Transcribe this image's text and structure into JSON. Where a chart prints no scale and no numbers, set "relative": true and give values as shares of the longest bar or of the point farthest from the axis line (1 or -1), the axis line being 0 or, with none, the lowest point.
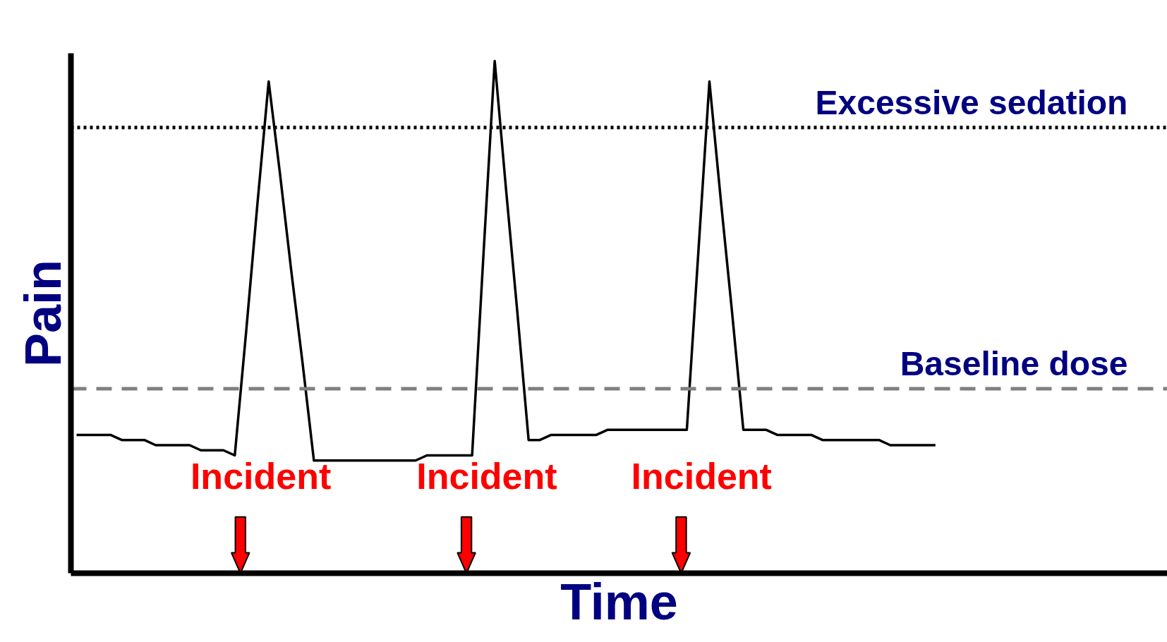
{
  "chart_data": {
    "type": "line",
    "relative": true,
    "xlabel": "Time",
    "ylabel": "Pain",
    "categories": [
      null,
      null,
      null,
      null,
      null,
      null,
      null,
      null,
      null,
      null,
      null,
      null,
      null,
      null,
      null,
      null,
      null,
      null,
      null,
      null,
      null,
      null,
      null,
      null,
      null,
      null,
      null,
      null,
      null,
      null,
      null,
      null,
      null,
      null,
      null,
      null,
      null,
      null,
      null,
      null,
      null,
      null,
      null,
      null,
      null,
      null,
      null,
      null,
      null,
      null,
      null,
      null,
      null,
      null,
      null,
      null,
      null,
      null,
      null,
      null,
      null,
      null,
      null,
      null,
      null,
      null,
      null,
      null,
      null,
      null,
      null,
      null,
      null,
      null,
      null,
      null,
      null
    ],
    "series": [
      {
        "color": "#000000",
        "values": [
          0.27,
          0.27,
          0.27,
          0.27,
          0.26,
          0.26,
          0.26,
          0.25,
          0.25,
          0.25,
          0.25,
          0.24,
          0.24,
          0.24,
          0.23,
          0.47,
          0.72,
          0.96,
          0.78,
          0.59,
          0.41,
          0.22,
          0.22,
          0.22,
          0.22,
          0.22,
          0.22,
          0.22,
          0.22,
          0.22,
          0.22,
          0.23,
          0.23,
          0.23,
          0.23,
          0.23,
          0.62,
          1.0,
          0.75,
          0.51,
          0.26,
          0.26,
          0.27,
          0.27,
          0.27,
          0.27,
          0.27,
          0.28,
          0.28,
          0.28,
          0.28,
          0.28,
          0.28,
          0.28,
          0.28,
          0.62,
          0.96,
          0.73,
          0.51,
          0.28,
          0.28,
          0.28,
          0.27,
          0.27,
          0.27,
          0.27,
          0.26,
          0.26,
          0.26,
          0.26,
          0.26,
          0.26,
          0.25,
          0.25,
          0.25,
          0.25,
          0.25
        ]
      }
    ],
    "ref_lines": [
      {
        "axis": "y",
        "value": 0.87,
        "label": "Excessive sedation",
        "color": "#000000",
        "line_style": "dotted"
      },
      {
        "axis": "y",
        "value": 0.36,
        "label": "Baseline dose",
        "color": "#808080",
        "line_style": "dashed"
      }
    ],
    "annotations": [
      "Incident",
      "Incident",
      "Incident"
    ],
    "marker": "none",
    "line_style": "solid"
  }
}
